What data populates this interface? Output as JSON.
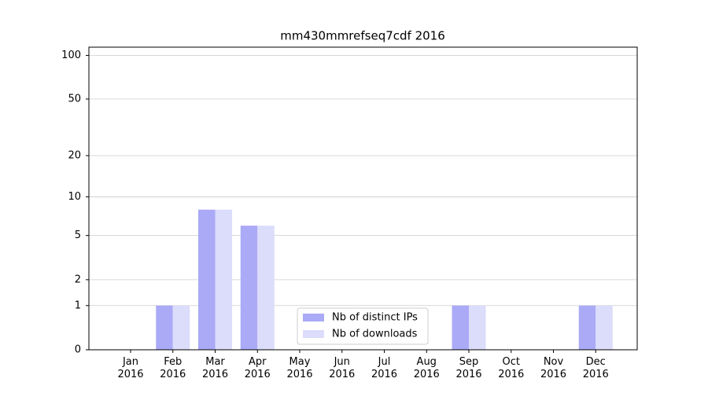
{
  "chart_data": {
    "type": "bar",
    "title": "mm430mmrefseq7cdf 2016",
    "categories": [
      "Jan\n2016",
      "Feb\n2016",
      "Mar\n2016",
      "Apr\n2016",
      "May\n2016",
      "Jun\n2016",
      "Jul\n2016",
      "Aug\n2016",
      "Sep\n2016",
      "Oct\n2016",
      "Nov\n2016",
      "Dec\n2016"
    ],
    "series": [
      {
        "name": "Nb of distinct IPs",
        "color": "#aaaaf7",
        "values": [
          0,
          1,
          8,
          6,
          0,
          0,
          0,
          0,
          1,
          0,
          0,
          1
        ]
      },
      {
        "name": "Nb of downloads",
        "color": "#dcdcfb",
        "values": [
          0,
          1,
          8,
          6,
          0,
          0,
          0,
          0,
          1,
          0,
          0,
          1
        ]
      }
    ],
    "yscale": "log1p",
    "ylim": [
      0,
      114
    ],
    "yticks": [
      0,
      1,
      2,
      5,
      10,
      20,
      50,
      100
    ],
    "grid": true,
    "legend": "lower center"
  }
}
